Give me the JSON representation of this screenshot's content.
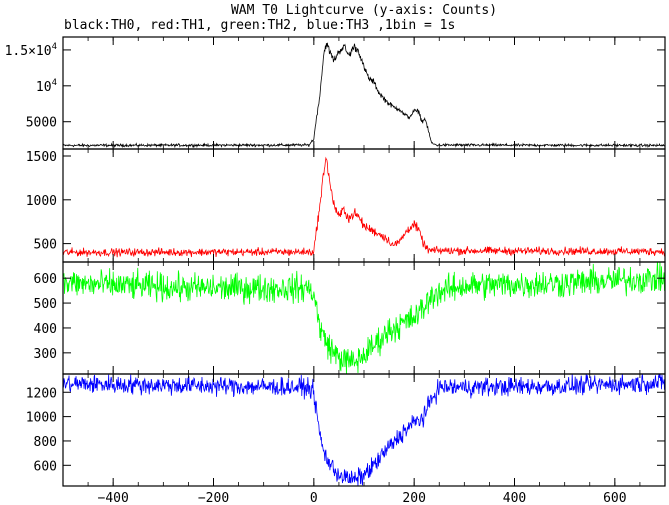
{
  "chart_data": {
    "type": "line",
    "title": "WAM T0 Lightcurve (y-axis: Counts)",
    "subtitle": "black:TH0, red:TH1, green:TH2, blue:TH3 ,1bin = 1s",
    "xlim": [
      -500,
      700
    ],
    "x_ticks": [
      -400,
      -200,
      0,
      200,
      400,
      600
    ],
    "x_tick_labels": [
      "−400",
      "−200",
      "0",
      "200",
      "400",
      "600"
    ],
    "bin_seconds": 1,
    "grid": false,
    "panels": [
      {
        "series": "TH0",
        "color": "#000000",
        "ylim": [
          1200,
          16800
        ],
        "y_ticks": [
          5000,
          10000,
          15000
        ],
        "y_tick_labels": [
          {
            "mantissa": "5000",
            "exponent": ""
          },
          {
            "mantissa": "10",
            "exponent": "4"
          },
          {
            "mantissa": "1.5×10",
            "exponent": "4"
          }
        ],
        "baseline": 1700,
        "noise": 90,
        "profile": [
          [
            -500,
            1700
          ],
          [
            -10,
            1750
          ],
          [
            0,
            2600
          ],
          [
            5,
            5500
          ],
          [
            10,
            7500
          ],
          [
            15,
            11000
          ],
          [
            20,
            14500
          ],
          [
            25,
            16000
          ],
          [
            30,
            15000
          ],
          [
            40,
            13500
          ],
          [
            50,
            14800
          ],
          [
            60,
            15500
          ],
          [
            70,
            14200
          ],
          [
            80,
            15500
          ],
          [
            90,
            14800
          ],
          [
            100,
            12500
          ],
          [
            110,
            11000
          ],
          [
            120,
            10500
          ],
          [
            130,
            9000
          ],
          [
            140,
            8200
          ],
          [
            150,
            7500
          ],
          [
            160,
            7000
          ],
          [
            170,
            6800
          ],
          [
            180,
            6000
          ],
          [
            190,
            5600
          ],
          [
            200,
            6500
          ],
          [
            210,
            6400
          ],
          [
            215,
            5000
          ],
          [
            222,
            5400
          ],
          [
            228,
            3800
          ],
          [
            235,
            2000
          ],
          [
            245,
            1750
          ],
          [
            700,
            1700
          ]
        ]
      },
      {
        "series": "TH1",
        "color": "#ff0000",
        "ylim": [
          290,
          1580
        ],
        "y_ticks": [
          500,
          1000,
          1500
        ],
        "y_tick_labels": [
          {
            "mantissa": "500",
            "exponent": ""
          },
          {
            "mantissa": "1000",
            "exponent": ""
          },
          {
            "mantissa": "1500",
            "exponent": ""
          }
        ],
        "baseline": 400,
        "noise": 22,
        "profile": [
          [
            -500,
            400
          ],
          [
            0,
            405
          ],
          [
            5,
            650
          ],
          [
            10,
            850
          ],
          [
            15,
            1050
          ],
          [
            20,
            1350
          ],
          [
            25,
            1500
          ],
          [
            30,
            1250
          ],
          [
            40,
            950
          ],
          [
            50,
            800
          ],
          [
            60,
            900
          ],
          [
            70,
            780
          ],
          [
            80,
            850
          ],
          [
            90,
            800
          ],
          [
            100,
            700
          ],
          [
            120,
            640
          ],
          [
            140,
            580
          ],
          [
            160,
            480
          ],
          [
            170,
            520
          ],
          [
            180,
            600
          ],
          [
            190,
            680
          ],
          [
            200,
            720
          ],
          [
            210,
            640
          ],
          [
            220,
            480
          ],
          [
            230,
            420
          ],
          [
            700,
            410
          ]
        ]
      },
      {
        "series": "TH2",
        "color": "#00ff00",
        "ylim": [
          215,
          665
        ],
        "y_ticks": [
          300,
          400,
          500,
          600
        ],
        "y_tick_labels": [
          {
            "mantissa": "300",
            "exponent": ""
          },
          {
            "mantissa": "400",
            "exponent": ""
          },
          {
            "mantissa": "500",
            "exponent": ""
          },
          {
            "mantissa": "600",
            "exponent": ""
          }
        ],
        "baseline": 560,
        "noise": 28,
        "profile": [
          [
            -500,
            580
          ],
          [
            -250,
            560
          ],
          [
            -10,
            560
          ],
          [
            0,
            540
          ],
          [
            10,
            420
          ],
          [
            20,
            360
          ],
          [
            40,
            300
          ],
          [
            60,
            270
          ],
          [
            80,
            260
          ],
          [
            100,
            290
          ],
          [
            120,
            330
          ],
          [
            150,
            390
          ],
          [
            180,
            420
          ],
          [
            200,
            440
          ],
          [
            215,
            470
          ],
          [
            240,
            540
          ],
          [
            300,
            570
          ],
          [
            500,
            580
          ],
          [
            700,
            600
          ]
        ]
      },
      {
        "series": "TH3",
        "color": "#0000ff",
        "ylim": [
          430,
          1350
        ],
        "y_ticks": [
          600,
          800,
          1000,
          1200
        ],
        "y_tick_labels": [
          {
            "mantissa": "600",
            "exponent": ""
          },
          {
            "mantissa": "800",
            "exponent": ""
          },
          {
            "mantissa": "1000",
            "exponent": ""
          },
          {
            "mantissa": "1200",
            "exponent": ""
          }
        ],
        "baseline": 1250,
        "noise": 38,
        "profile": [
          [
            -500,
            1270
          ],
          [
            -10,
            1240
          ],
          [
            0,
            1200
          ],
          [
            10,
            900
          ],
          [
            20,
            700
          ],
          [
            40,
            560
          ],
          [
            60,
            500
          ],
          [
            80,
            480
          ],
          [
            100,
            520
          ],
          [
            120,
            600
          ],
          [
            150,
            750
          ],
          [
            180,
            880
          ],
          [
            200,
            950
          ],
          [
            220,
            1000
          ],
          [
            235,
            1150
          ],
          [
            250,
            1240
          ],
          [
            500,
            1250
          ],
          [
            700,
            1280
          ]
        ]
      }
    ]
  }
}
